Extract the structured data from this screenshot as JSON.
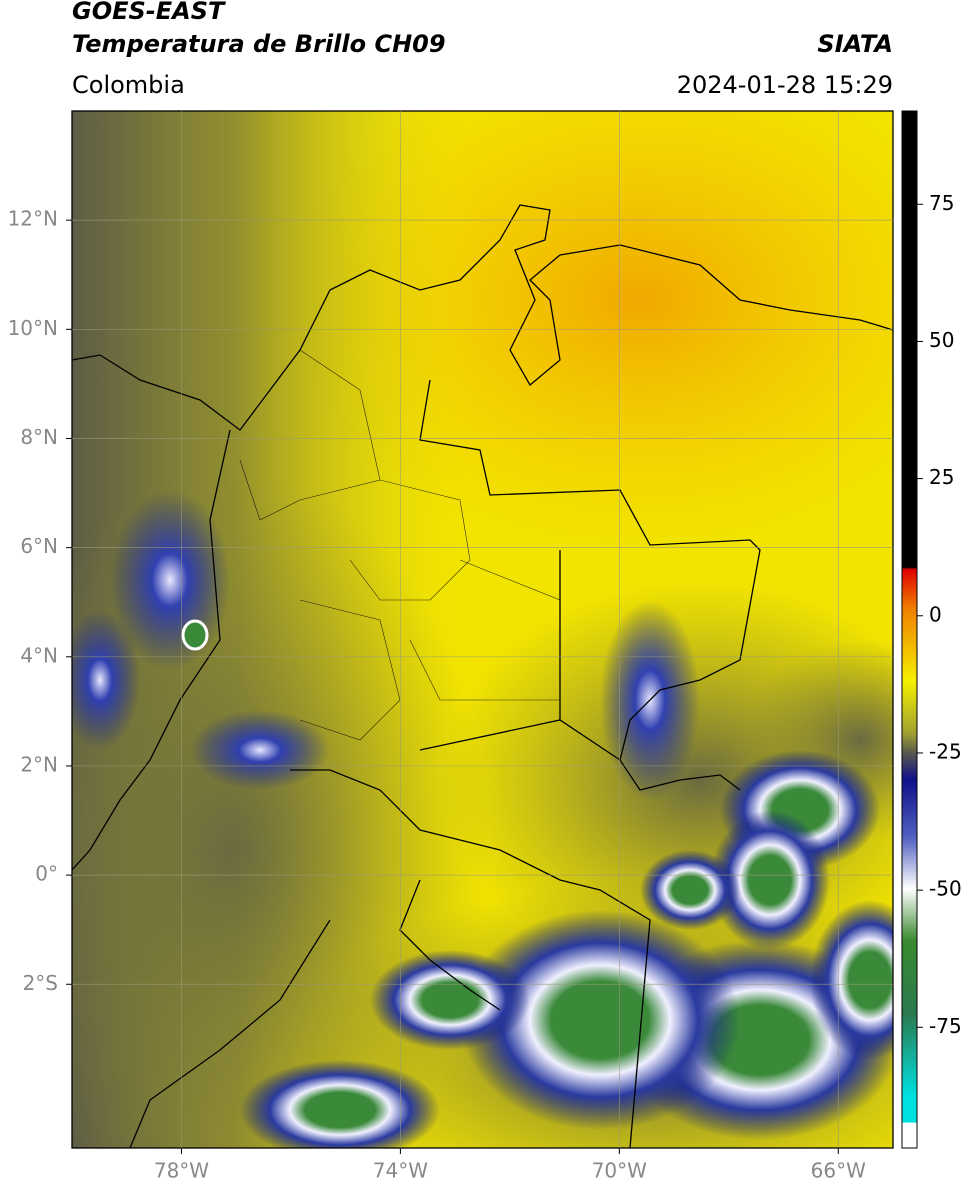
{
  "header": {
    "satellite": "GOES-EAST",
    "product": "Temperatura de Brillo CH09",
    "region": "Colombia",
    "source": "SIATA",
    "timestamp": "2024-01-28 15:29"
  },
  "map": {
    "xlim": [
      -80,
      -65
    ],
    "ylim": [
      -5,
      14
    ],
    "xticks": [
      {
        "value": -78,
        "label": "78°W"
      },
      {
        "value": -74,
        "label": "74°W"
      },
      {
        "value": -70,
        "label": "70°W"
      },
      {
        "value": -66,
        "label": "66°W"
      }
    ],
    "yticks": [
      {
        "value": 12,
        "label": "12°N"
      },
      {
        "value": 10,
        "label": "10°N"
      },
      {
        "value": 8,
        "label": "8°N"
      },
      {
        "value": 6,
        "label": "6°N"
      },
      {
        "value": 4,
        "label": "4°N"
      },
      {
        "value": 2,
        "label": "2°N"
      },
      {
        "value": 0,
        "label": "0°"
      },
      {
        "value": -2,
        "label": "2°S"
      }
    ]
  },
  "colorbar": {
    "lim": [
      -97,
      92
    ],
    "ticks": [
      75,
      50,
      25,
      0,
      -25,
      -50,
      -75
    ]
  }
}
